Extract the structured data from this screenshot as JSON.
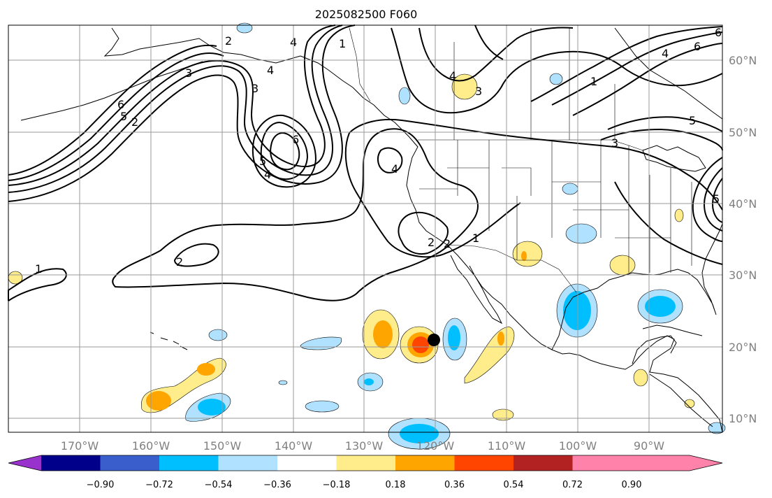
{
  "title": "2025082500 F060",
  "map": {
    "lon_labels": [
      "170°W",
      "160°W",
      "150°W",
      "140°W",
      "130°W",
      "120°W",
      "110°W",
      "100°W",
      "90°W"
    ],
    "lat_labels": [
      "60°N",
      "50°N",
      "40°N",
      "30°N",
      "20°N",
      "10°N"
    ],
    "contour_labels": [
      "1",
      "2",
      "2",
      "3",
      "4",
      "4",
      "5",
      "6",
      "1",
      "2",
      "3",
      "4",
      "5",
      "6",
      "1",
      "2",
      "3",
      "4",
      "4",
      "5",
      "6",
      "1",
      "2",
      "3",
      "4",
      "5",
      "6"
    ],
    "storm_marker": "storm-center"
  },
  "colorbar": {
    "ticks": [
      "−0.90",
      "−0.72",
      "−0.54",
      "−0.36",
      "−0.18",
      "0.18",
      "0.36",
      "0.54",
      "0.72",
      "0.90"
    ],
    "colors": [
      "#9932CC",
      "#00008B",
      "#3A5FCD",
      "#00BFFF",
      "#B0E2FF",
      "#FFFFFF",
      "#FFEC8B",
      "#FFA500",
      "#FF4500",
      "#B22222",
      "#FF82AB"
    ]
  }
}
